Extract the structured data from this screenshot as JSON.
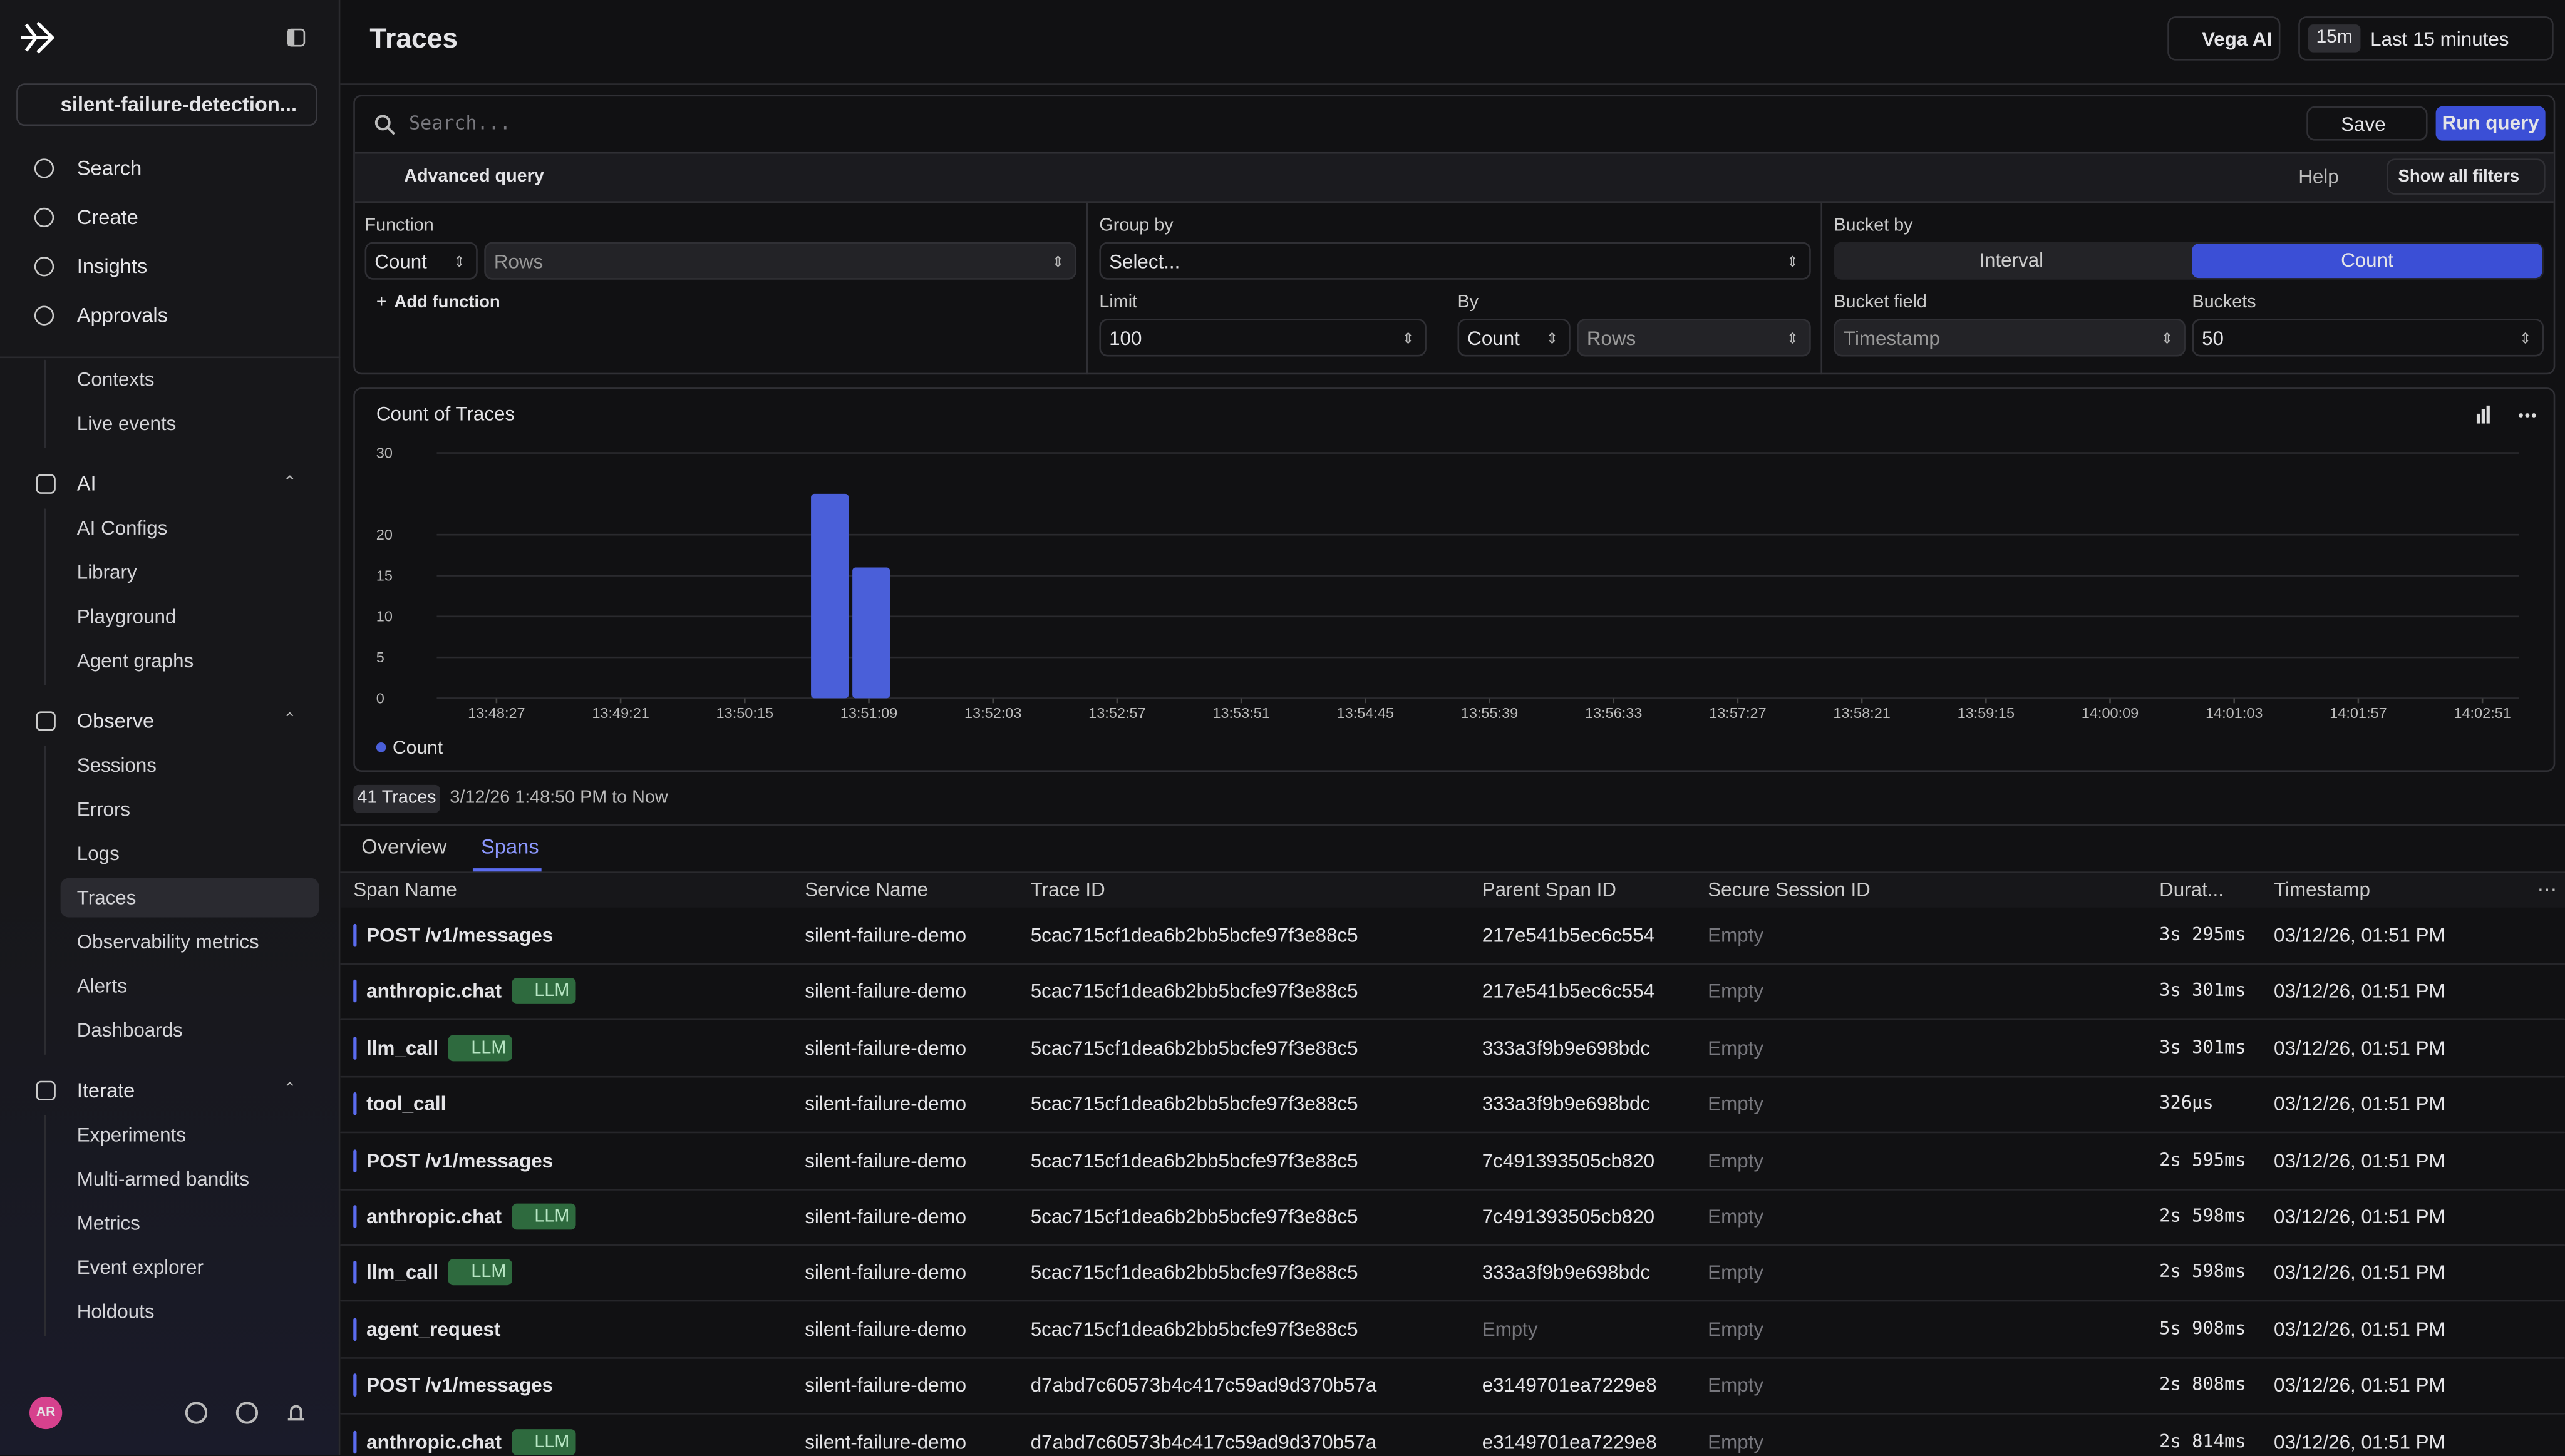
{
  "sidebar": {
    "project": "silent-failure-detection...",
    "nav": [
      "Search",
      "Create",
      "Insights",
      "Approvals"
    ],
    "sections": [
      {
        "items": [
          "Contexts",
          "Live events"
        ]
      },
      {
        "title": "AI",
        "items": [
          "AI Configs",
          "Library",
          "Playground",
          "Agent graphs"
        ]
      },
      {
        "title": "Observe",
        "items": [
          "Sessions",
          "Errors",
          "Logs",
          "Traces",
          "Observability metrics",
          "Alerts",
          "Dashboards"
        ]
      },
      {
        "title": "Iterate",
        "items": [
          "Experiments",
          "Multi-armed bandits",
          "Metrics",
          "Event explorer",
          "Holdouts"
        ]
      }
    ],
    "avatar": "AR"
  },
  "header": {
    "title": "Traces",
    "vega": "Vega AI",
    "time_chip": "15m",
    "time_range": "Last 15 minutes"
  },
  "query": {
    "search_placeholder": "Search...",
    "save": "Save",
    "run": "Run query",
    "advanced": "Advanced query",
    "help": "Help",
    "show_filters": "Show all filters",
    "function": {
      "label": "Function",
      "value": "Count",
      "field": "Rows",
      "add": "Add function"
    },
    "group_by": {
      "label": "Group by",
      "value": "Select..."
    },
    "limit": {
      "label": "Limit",
      "value": "100"
    },
    "by": {
      "label": "By",
      "value": "Count",
      "field": "Rows"
    },
    "bucket_by": {
      "label": "Bucket by",
      "options": [
        "Interval",
        "Count"
      ]
    },
    "bucket_field": {
      "label": "Bucket field",
      "value": "Timestamp"
    },
    "buckets": {
      "label": "Buckets",
      "value": "50"
    }
  },
  "chart": {
    "type": "bar",
    "title": "Count of Traces",
    "x": [
      "13:50:52",
      "13:51:10"
    ],
    "series": [
      {
        "name": "Count",
        "color": "#4a5fd9",
        "values": [
          25,
          16
        ]
      }
    ],
    "xlim": [
      "13:48:01",
      "14:03:07"
    ],
    "xticks": [
      "13:48:27",
      "13:49:21",
      "13:50:15",
      "13:51:09",
      "13:52:03",
      "13:52:57",
      "13:53:51",
      "13:54:45",
      "13:55:39",
      "13:56:33",
      "13:57:27",
      "13:58:21",
      "13:59:15",
      "14:00:09",
      "14:01:03",
      "14:01:57",
      "14:02:51"
    ],
    "ylim": [
      0,
      30
    ],
    "yticks": [
      0,
      5,
      10,
      15,
      20,
      30
    ],
    "grid": true
  },
  "summary": {
    "count": "41 Traces",
    "range": "3/12/26 1:48:50 PM to Now"
  },
  "tabs": [
    "Overview",
    "Spans"
  ],
  "table": {
    "columns": [
      "Span Name",
      "Service Name",
      "Trace ID",
      "Parent Span ID",
      "Secure Session ID",
      "Durat...",
      "Timestamp"
    ],
    "rows": [
      {
        "cells": [
          "POST /v1/messages",
          "silent-failure-demo",
          "5cac715cf1dea6b2bb5bcfe97f3e88c5",
          "217e541b5ec6c554",
          "Empty",
          "3s 295ms",
          "03/12/26, 01:51 PM"
        ]
      },
      {
        "cells": [
          "anthropic.chat",
          "silent-failure-demo",
          "5cac715cf1dea6b2bb5bcfe97f3e88c5",
          "217e541b5ec6c554",
          "Empty",
          "3s 301ms",
          "03/12/26, 01:51 PM"
        ],
        "badge": "LLM"
      },
      {
        "cells": [
          "llm_call",
          "silent-failure-demo",
          "5cac715cf1dea6b2bb5bcfe97f3e88c5",
          "333a3f9b9e698bdc",
          "Empty",
          "3s 301ms",
          "03/12/26, 01:51 PM"
        ],
        "badge": "LLM"
      },
      {
        "cells": [
          "tool_call",
          "silent-failure-demo",
          "5cac715cf1dea6b2bb5bcfe97f3e88c5",
          "333a3f9b9e698bdc",
          "Empty",
          "326µs",
          "03/12/26, 01:51 PM"
        ]
      },
      {
        "cells": [
          "POST /v1/messages",
          "silent-failure-demo",
          "5cac715cf1dea6b2bb5bcfe97f3e88c5",
          "7c491393505cb820",
          "Empty",
          "2s 595ms",
          "03/12/26, 01:51 PM"
        ]
      },
      {
        "cells": [
          "anthropic.chat",
          "silent-failure-demo",
          "5cac715cf1dea6b2bb5bcfe97f3e88c5",
          "7c491393505cb820",
          "Empty",
          "2s 598ms",
          "03/12/26, 01:51 PM"
        ],
        "badge": "LLM"
      },
      {
        "cells": [
          "llm_call",
          "silent-failure-demo",
          "5cac715cf1dea6b2bb5bcfe97f3e88c5",
          "333a3f9b9e698bdc",
          "Empty",
          "2s 598ms",
          "03/12/26, 01:51 PM"
        ],
        "badge": "LLM"
      },
      {
        "cells": [
          "agent_request",
          "silent-failure-demo",
          "5cac715cf1dea6b2bb5bcfe97f3e88c5",
          "Empty",
          "Empty",
          "5s 908ms",
          "03/12/26, 01:51 PM"
        ]
      },
      {
        "cells": [
          "POST /v1/messages",
          "silent-failure-demo",
          "d7abd7c60573b4c417c59ad9d370b57a",
          "e3149701ea7229e8",
          "Empty",
          "2s 808ms",
          "03/12/26, 01:51 PM"
        ]
      },
      {
        "cells": [
          "anthropic.chat",
          "silent-failure-demo",
          "d7abd7c60573b4c417c59ad9d370b57a",
          "e3149701ea7229e8",
          "Empty",
          "2s 814ms",
          "03/12/26, 01:51 PM"
        ],
        "badge": "LLM"
      }
    ]
  }
}
